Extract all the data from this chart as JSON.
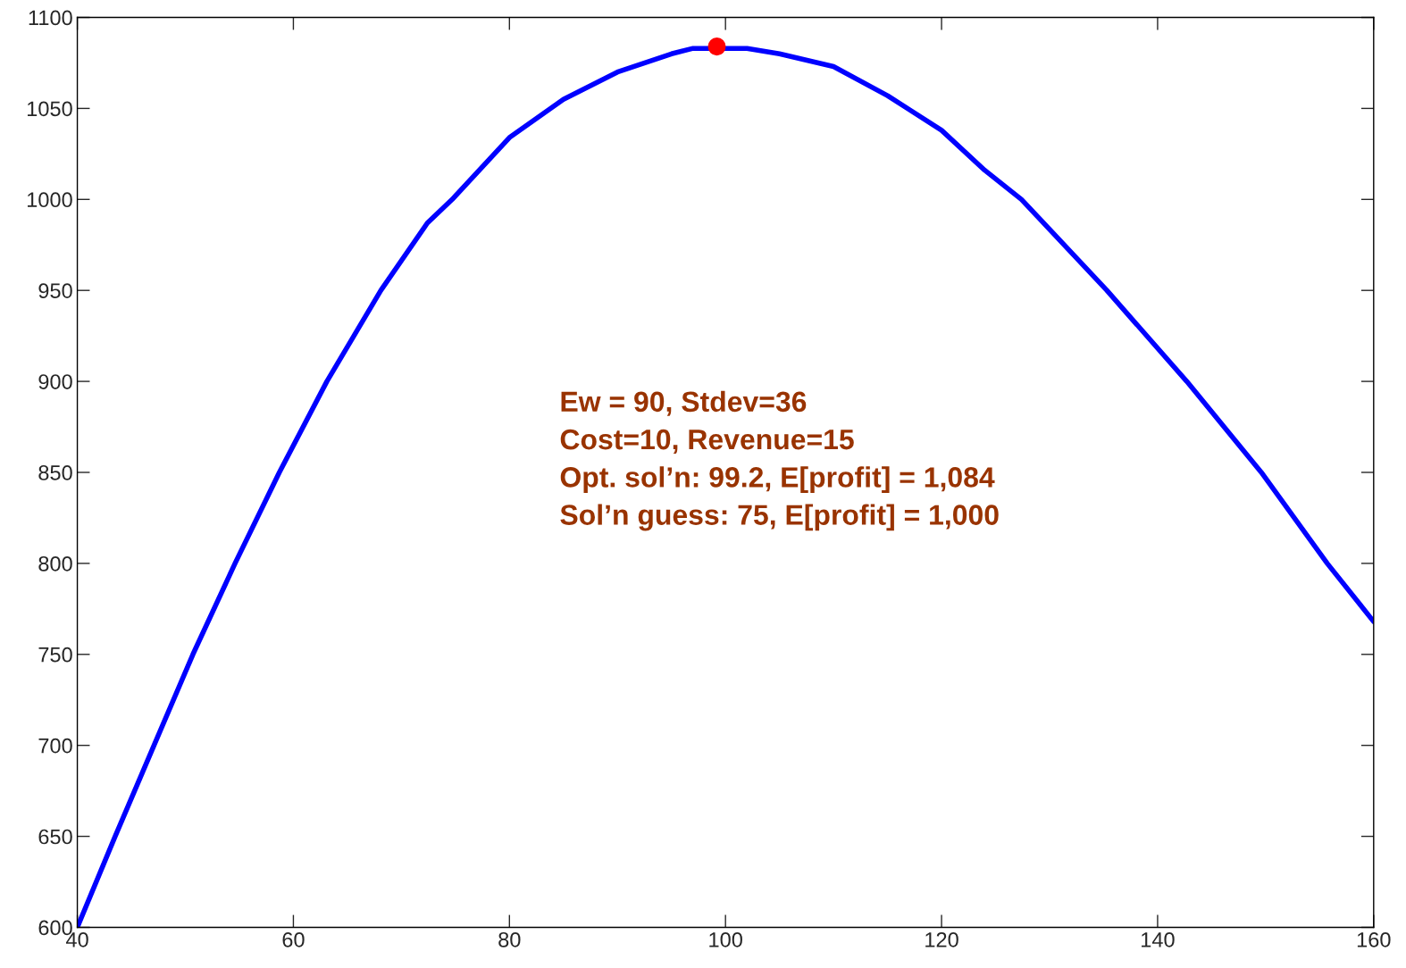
{
  "chart_data": {
    "type": "line",
    "xlim": [
      40,
      160
    ],
    "ylim": [
      600,
      1100
    ],
    "xticks": [
      40,
      60,
      80,
      100,
      120,
      140,
      160
    ],
    "yticks": [
      600,
      650,
      700,
      750,
      800,
      850,
      900,
      950,
      1000,
      1050,
      1100
    ],
    "grid": false,
    "legend": false,
    "series": [
      {
        "color": "#0000ff",
        "marker": "none",
        "x": [
          40,
          43.5,
          47.1,
          50.7,
          54.6,
          58.7,
          63.1,
          68.1,
          72.4,
          74.7,
          80,
          85,
          90,
          95,
          97,
          102,
          105,
          110,
          115,
          120,
          124,
          127.4,
          135.3,
          142.7,
          149.6,
          155.7,
          160
        ],
        "values": [
          600,
          650,
          700,
          750,
          800,
          850,
          900,
          950,
          987,
          1000,
          1034,
          1055,
          1070,
          1080,
          1083,
          1083,
          1080,
          1073,
          1057,
          1038,
          1016,
          1000,
          950,
          900,
          850,
          800,
          768
        ]
      },
      {
        "type": "scatter",
        "color": "#ff0000",
        "marker": "circle",
        "x": [
          99.2
        ],
        "values": [
          1084
        ]
      }
    ],
    "annotations": [
      "Ew = 90, Stdev=36",
      "Cost=10, Revenue=15",
      "Opt. sol’n: 99.2, E[profit] = 1,084",
      "Sol’n guess: 75, E[profit] = 1,000"
    ]
  }
}
